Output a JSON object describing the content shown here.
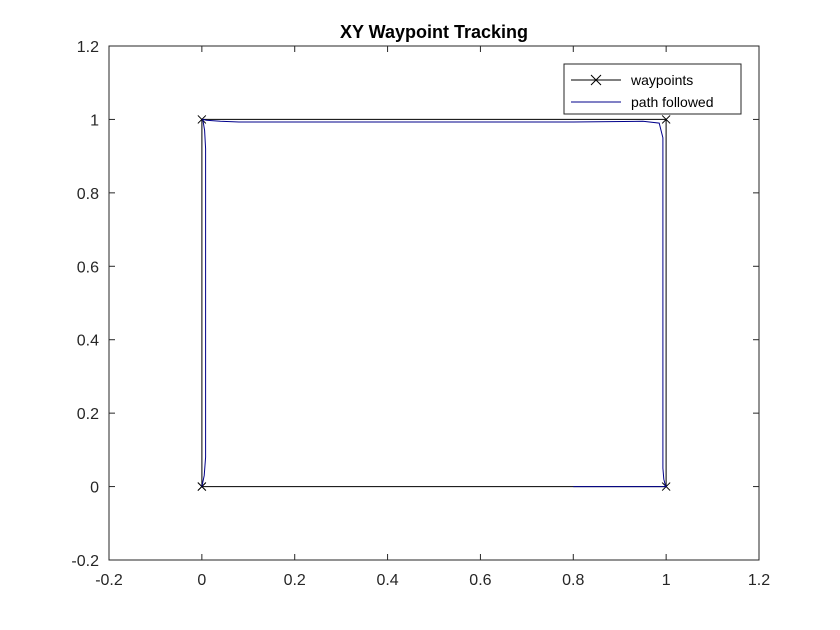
{
  "chart_data": {
    "type": "line",
    "title": "XY Waypoint Tracking",
    "xlabel": "",
    "ylabel": "",
    "xlim": [
      -0.2,
      1.2
    ],
    "ylim": [
      -0.2,
      1.2
    ],
    "xticks": [
      -0.2,
      0,
      0.2,
      0.4,
      0.6,
      0.8,
      1,
      1.2
    ],
    "yticks": [
      -0.2,
      0,
      0.2,
      0.4,
      0.6,
      0.8,
      1,
      1.2
    ],
    "xtick_labels": [
      "-0.2",
      "0",
      "0.2",
      "0.4",
      "0.6",
      "0.8",
      "1",
      "1.2"
    ],
    "ytick_labels": [
      "-0.2",
      "0",
      "0.2",
      "0.4",
      "0.6",
      "0.8",
      "1",
      "1.2"
    ],
    "grid": false,
    "legend_position": "top-right",
    "series": [
      {
        "name": "waypoints",
        "color": "#000000",
        "marker": "x",
        "x": [
          0,
          0,
          1,
          1,
          0
        ],
        "y": [
          0,
          1,
          1,
          0,
          0
        ]
      },
      {
        "name": "path followed",
        "color": "#00008b",
        "marker": "none",
        "x": [
          0,
          0.005,
          0.008,
          0.008,
          0.008,
          0.006,
          0.002,
          0.01,
          0.04,
          0.08,
          0.2,
          0.4,
          0.6,
          0.8,
          0.95,
          0.985,
          0.993,
          0.993,
          0.993,
          0.995,
          0.998,
          1,
          0.95,
          0.8
        ],
        "y": [
          0,
          0.03,
          0.08,
          0.5,
          0.92,
          0.97,
          1,
          0.998,
          0.995,
          0.993,
          0.993,
          0.993,
          0.993,
          0.993,
          0.995,
          0.99,
          0.95,
          0.5,
          0.05,
          0.02,
          0.005,
          0.0,
          0.0,
          0.0
        ]
      }
    ]
  }
}
